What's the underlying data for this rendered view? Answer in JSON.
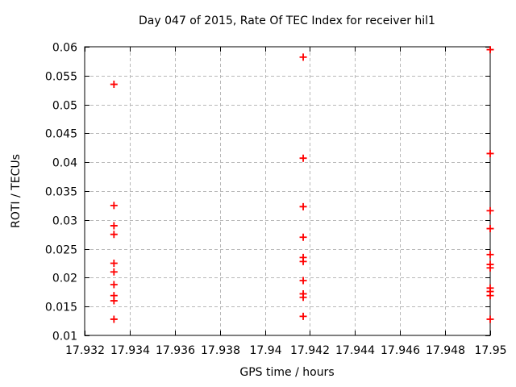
{
  "figure": {
    "background": "#ffffff",
    "border_color": "#000000",
    "grid_color": "#b8b8b8",
    "text_color": "#000000"
  },
  "chart_data": {
    "type": "scatter",
    "title": "Day 047 of 2015, Rate Of TEC Index for receiver hil1",
    "xlabel": "GPS time / hours",
    "ylabel": "ROTI / TECUs",
    "xlim": [
      17.932,
      17.95
    ],
    "ylim": [
      0.01,
      0.06
    ],
    "grid": true,
    "legend": "none",
    "marker": {
      "shape": "plus",
      "color": "#ff0000",
      "size": 9
    },
    "xticks": [
      {
        "value": 17.932,
        "label": "17.932"
      },
      {
        "value": 17.934,
        "label": "17.934"
      },
      {
        "value": 17.936,
        "label": "17.936"
      },
      {
        "value": 17.938,
        "label": "17.938"
      },
      {
        "value": 17.94,
        "label": "17.94"
      },
      {
        "value": 17.942,
        "label": "17.942"
      },
      {
        "value": 17.944,
        "label": "17.944"
      },
      {
        "value": 17.946,
        "label": "17.946"
      },
      {
        "value": 17.948,
        "label": "17.948"
      },
      {
        "value": 17.95,
        "label": "17.95"
      }
    ],
    "yticks": [
      {
        "value": 0.01,
        "label": "0.01"
      },
      {
        "value": 0.015,
        "label": "0.015"
      },
      {
        "value": 0.02,
        "label": "0.02"
      },
      {
        "value": 0.025,
        "label": "0.025"
      },
      {
        "value": 0.03,
        "label": "0.03"
      },
      {
        "value": 0.035,
        "label": "0.035"
      },
      {
        "value": 0.04,
        "label": "0.04"
      },
      {
        "value": 0.045,
        "label": "0.045"
      },
      {
        "value": 0.05,
        "label": "0.05"
      },
      {
        "value": 0.055,
        "label": "0.055"
      },
      {
        "value": 0.06,
        "label": "0.06"
      }
    ],
    "series": [
      {
        "name": "ROTI",
        "points": [
          [
            17.9333,
            0.0535
          ],
          [
            17.9333,
            0.0325
          ],
          [
            17.9333,
            0.029
          ],
          [
            17.9333,
            0.0275
          ],
          [
            17.9333,
            0.0225
          ],
          [
            17.9333,
            0.021
          ],
          [
            17.9333,
            0.0188
          ],
          [
            17.9333,
            0.0169
          ],
          [
            17.9333,
            0.016
          ],
          [
            17.9333,
            0.0128
          ],
          [
            17.9417,
            0.0582
          ],
          [
            17.9417,
            0.0407
          ],
          [
            17.9417,
            0.0323
          ],
          [
            17.9417,
            0.027
          ],
          [
            17.9417,
            0.0235
          ],
          [
            17.9417,
            0.0228
          ],
          [
            17.9417,
            0.0195
          ],
          [
            17.9417,
            0.0172
          ],
          [
            17.9417,
            0.0166
          ],
          [
            17.9417,
            0.0133
          ],
          [
            17.95,
            0.0595
          ],
          [
            17.95,
            0.0415
          ],
          [
            17.95,
            0.0316
          ],
          [
            17.95,
            0.0285
          ],
          [
            17.95,
            0.024
          ],
          [
            17.95,
            0.0223
          ],
          [
            17.95,
            0.0217
          ],
          [
            17.95,
            0.0182
          ],
          [
            17.95,
            0.0176
          ],
          [
            17.95,
            0.0169
          ],
          [
            17.95,
            0.0128
          ]
        ]
      }
    ]
  }
}
